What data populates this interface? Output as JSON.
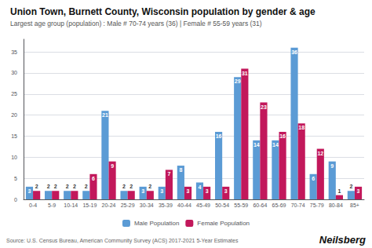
{
  "chart_data": {
    "type": "bar",
    "title": "Union Town, Burnett County, Wisconsin population by gender & age",
    "subtitle": "Largest age group (population) : Male # 70-74 years (36) | Female # 55-59 years (31)",
    "categories": [
      "0-4",
      "5-9",
      "10-14",
      "15-19",
      "20-24",
      "25-29",
      "30-34",
      "35-39",
      "40-44",
      "45-49",
      "50-54",
      "55-59",
      "60-64",
      "65-69",
      "70-74",
      "75-79",
      "80-84",
      "85+"
    ],
    "series": [
      {
        "name": "Male Population",
        "color": "#5b9bd5",
        "values": [
          3,
          2,
          2,
          2,
          21,
          2,
          3,
          3,
          8,
          4,
          16,
          29,
          14,
          14,
          36,
          6,
          9,
          2
        ]
      },
      {
        "name": "Female Population",
        "color": "#c2185b",
        "values": [
          2,
          2,
          2,
          6,
          9,
          2,
          2,
          7,
          3,
          3,
          3,
          31,
          23,
          16,
          18,
          12,
          1,
          3
        ]
      }
    ],
    "ylim": [
      0,
      38
    ],
    "yticks": [
      0,
      5,
      10,
      15,
      20,
      25,
      30,
      35
    ],
    "grid": true,
    "data_labels": true,
    "legend": "bottom",
    "annotations": [
      "Source: U.S. Census Bureau, American Community Survey (ACS) 2017-2021 5-Year Estimates",
      "Neilsberg"
    ]
  }
}
